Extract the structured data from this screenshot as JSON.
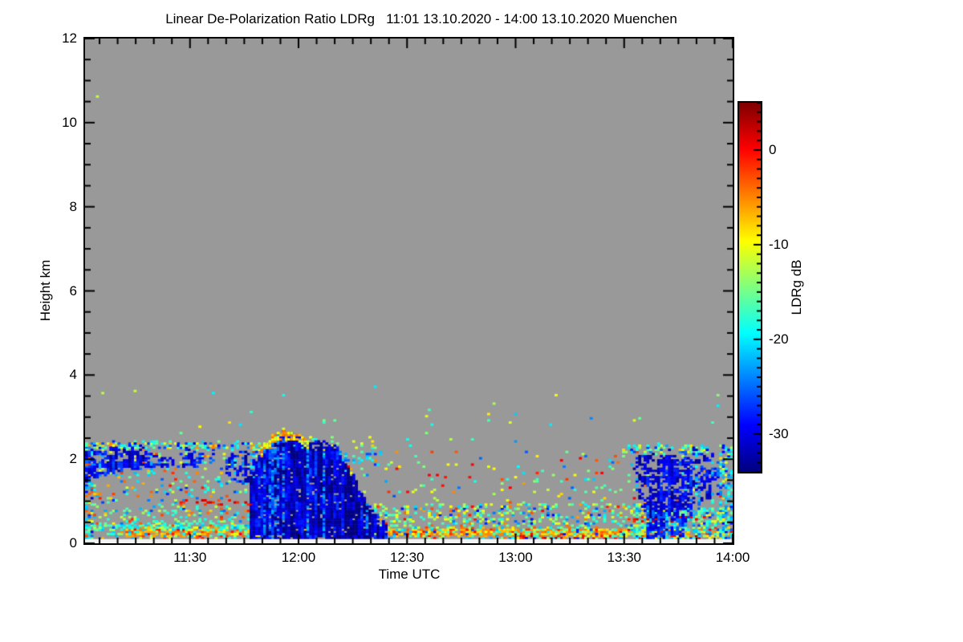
{
  "title": "Linear De-Polarization Ratio LDRg   11:01 13.10.2020 - 14:00 13.10.2020 Muenchen",
  "colors": {
    "page_bg": "#ffffff",
    "plot_bg": "#999999",
    "frame": "#000000",
    "missing_strip": "#f4f4f4"
  },
  "x_axis": {
    "label": "Time UTC",
    "start": "11:01",
    "end": "14:00",
    "ticks": [
      {
        "label": "11:30",
        "minute": 29
      },
      {
        "label": "12:00",
        "minute": 59
      },
      {
        "label": "12:30",
        "minute": 89
      },
      {
        "label": "13:00",
        "minute": 119
      },
      {
        "label": "13:30",
        "minute": 149
      },
      {
        "label": "14:00",
        "minute": 179
      }
    ],
    "minor_step_min": 5,
    "total_minutes": 179
  },
  "y_axis": {
    "label": "Height km",
    "min": 0,
    "max": 12,
    "ticks": [
      {
        "label": "0",
        "km": 0
      },
      {
        "label": "2",
        "km": 2
      },
      {
        "label": "4",
        "km": 4
      },
      {
        "label": "6",
        "km": 6
      },
      {
        "label": "8",
        "km": 8
      },
      {
        "label": "10",
        "km": 10
      },
      {
        "label": "12",
        "km": 12
      }
    ],
    "minor_step_km": 0.5
  },
  "colorbar": {
    "label": "LDRg dB",
    "colormap": "jet",
    "vmin": -34,
    "vmax": 5,
    "ticks": [
      {
        "label": "0",
        "value": 0
      },
      {
        "label": "-10",
        "value": -10
      },
      {
        "label": "-20",
        "value": -20
      },
      {
        "label": "-30",
        "value": -30
      }
    ],
    "minor_step": 1
  },
  "chart_data": {
    "type": "heatmap",
    "title": "Linear De-Polarization Ratio LDRg",
    "site": "Muenchen",
    "time_span": "11:01 13.10.2020 - 14:00 13.10.2020",
    "x_unit": "minutes after 11:01 UTC",
    "y_unit": "km height",
    "value_unit": "LDRg dB",
    "value_range": [
      -34,
      5
    ],
    "background_value": "no-data gray",
    "grid": {
      "cols": 240,
      "rows": 240
    },
    "features": [
      {
        "name": "surface-rain-line",
        "kind": "hline",
        "t": [
          11,
          179
        ],
        "h": 0.24,
        "thickness": 0.14,
        "density": 0.8,
        "modes": [
          [
            -9,
            -4,
            0.72
          ],
          [
            -4,
            1,
            0.2
          ],
          [
            -16,
            -10,
            0.08
          ]
        ]
      },
      {
        "name": "near-surface-red-dots",
        "kind": "hline",
        "t": [
          118,
          172
        ],
        "h": 0.1,
        "thickness": 0.07,
        "density": 0.3,
        "modes": [
          [
            -1,
            4,
            1
          ]
        ]
      },
      {
        "name": "cyan-line-left",
        "kind": "hline",
        "t": [
          0,
          48
        ],
        "h": 0.36,
        "thickness": 0.1,
        "density": 0.55,
        "modes": [
          [
            -22,
            -15,
            0.85
          ],
          [
            -12,
            -8,
            0.15
          ]
        ]
      },
      {
        "name": "left-low-aerosol",
        "kind": "speckle",
        "t": [
          0,
          47
        ],
        "h": [
          0.08,
          0.75
        ],
        "density": 0.22,
        "modes": [
          [
            -20,
            -10,
            0.5
          ],
          [
            -26,
            -16,
            0.3
          ],
          [
            -8,
            0,
            0.2
          ]
        ]
      },
      {
        "name": "left-mid-speckle",
        "kind": "speckle",
        "t": [
          0,
          47
        ],
        "h": [
          0.75,
          2.3
        ],
        "density": 0.1,
        "modes": [
          [
            -20,
            -10,
            0.45
          ],
          [
            -28,
            -18,
            0.35
          ],
          [
            -8,
            0,
            0.2
          ]
        ]
      },
      {
        "name": "red-dotted-line-left",
        "kind": "hline",
        "t": [
          26,
          52
        ],
        "h": 0.95,
        "thickness": 0.08,
        "density": 0.28,
        "modes": [
          [
            -3,
            2,
            1
          ]
        ]
      },
      {
        "name": "left-top-edge-band",
        "kind": "hline",
        "t": [
          0,
          52
        ],
        "h": 2.3,
        "thickness": 0.12,
        "density": 0.5,
        "modes": [
          [
            -22,
            -14,
            0.5
          ],
          [
            -32,
            -24,
            0.25
          ],
          [
            -12,
            -5,
            0.25
          ]
        ]
      },
      {
        "name": "mid-low-speckles",
        "kind": "speckle",
        "t": [
          80,
          156
        ],
        "h": [
          0.08,
          0.9
        ],
        "density": 0.3,
        "modes": [
          [
            -18,
            -9,
            0.5
          ],
          [
            -24,
            -16,
            0.3
          ],
          [
            -7,
            0,
            0.12
          ],
          [
            -30,
            -24,
            0.08
          ]
        ]
      },
      {
        "name": "mid-upper-speckles",
        "kind": "speckle",
        "t": [
          66,
          176
        ],
        "h": [
          0.9,
          2.15
        ],
        "density": 0.045,
        "modes": [
          [
            -18,
            -8,
            0.55
          ],
          [
            -26,
            -16,
            0.25
          ],
          [
            -6,
            1,
            0.2
          ]
        ]
      },
      {
        "name": "above-cloud-flecks",
        "kind": "speckle",
        "t": [
          56,
          80
        ],
        "h": [
          2.2,
          2.55
        ],
        "density": 0.12,
        "modes": [
          [
            -22,
            -14,
            0.6
          ],
          [
            -12,
            -7,
            0.4
          ]
        ]
      },
      {
        "name": "post-cloud-cyan-shelf",
        "kind": "hline",
        "t": [
          66,
          82
        ],
        "h": 2.0,
        "thickness": 0.25,
        "density": 0.25,
        "modes": [
          [
            -24,
            -16,
            0.7
          ],
          [
            -30,
            -24,
            0.3
          ]
        ]
      },
      {
        "name": "high-rare-dots",
        "kind": "speckle",
        "t": [
          0,
          179
        ],
        "h": [
          2.3,
          3.6
        ],
        "density": 0.004,
        "modes": [
          [
            -18,
            -8,
            0.6
          ],
          [
            -24,
            -14,
            0.4
          ]
        ]
      },
      {
        "name": "cyan-band-right",
        "kind": "hline",
        "t": [
          149,
          172
        ],
        "h": 2.22,
        "thickness": 0.14,
        "density": 0.45,
        "modes": [
          [
            -21,
            -13,
            0.7
          ],
          [
            -12,
            -7,
            0.15
          ],
          [
            -28,
            -22,
            0.15
          ]
        ]
      },
      {
        "name": "right-low-dense",
        "kind": "speckle",
        "t": [
          152,
          179
        ],
        "h": [
          0.08,
          0.8
        ],
        "density": 0.5,
        "modes": [
          [
            -22,
            -14,
            0.55
          ],
          [
            -16,
            -8,
            0.3
          ],
          [
            -28,
            -22,
            0.15
          ]
        ]
      },
      {
        "name": "right-red-dotted",
        "kind": "hline",
        "t": [
          150,
          172
        ],
        "h": 0.55,
        "thickness": 0.08,
        "density": 0.3,
        "modes": [
          [
            -2,
            3,
            1
          ]
        ]
      },
      {
        "name": "right-edge-column",
        "kind": "speckle",
        "t": [
          176,
          179
        ],
        "h": [
          0.08,
          2.3
        ],
        "density": 0.45,
        "modes": [
          [
            -24,
            -16,
            0.5
          ],
          [
            -30,
            -22,
            0.3
          ],
          [
            -14,
            -8,
            0.2
          ]
        ]
      },
      {
        "name": "left-edge-column",
        "kind": "speckle",
        "t": [
          0,
          2
        ],
        "h": [
          0.08,
          2.3
        ],
        "density": 0.4,
        "modes": [
          [
            -30,
            -22,
            0.4
          ],
          [
            -22,
            -14,
            0.4
          ],
          [
            -10,
            -2,
            0.2
          ]
        ]
      },
      {
        "name": "left-cloud",
        "kind": "cloud",
        "t": [
          0,
          25
        ],
        "clump": true,
        "density": 0.78,
        "top": [
          [
            0,
            2.15
          ],
          [
            5,
            2.28
          ],
          [
            9,
            2.2
          ],
          [
            13,
            2.3
          ],
          [
            18,
            2.12
          ],
          [
            22,
            2.02
          ],
          [
            25,
            1.95
          ]
        ],
        "bottom": [
          [
            0,
            1.5
          ],
          [
            5,
            1.62
          ],
          [
            10,
            1.75
          ],
          [
            15,
            1.8
          ],
          [
            20,
            1.82
          ],
          [
            25,
            1.88
          ]
        ],
        "v": [
          -33,
          -27
        ],
        "streak": 0.12,
        "streak_v": [
          -25,
          -21
        ]
      },
      {
        "name": "small-cloud-1128",
        "kind": "cloud",
        "t": [
          26,
          35
        ],
        "clump": true,
        "density": 0.55,
        "top": [
          [
            26,
            2.12
          ],
          [
            30,
            2.18
          ],
          [
            35,
            2.1
          ]
        ],
        "bottom": [
          [
            26,
            1.85
          ],
          [
            30,
            1.8
          ],
          [
            35,
            1.9
          ]
        ],
        "v": [
          -32,
          -26
        ],
        "streak": 0.1,
        "streak_v": [
          -24,
          -20
        ]
      },
      {
        "name": "pre-cloud-patch",
        "kind": "cloud",
        "t": [
          39,
          48
        ],
        "clump": true,
        "density": 0.5,
        "top": [
          [
            39,
            2.0
          ],
          [
            43,
            2.15
          ],
          [
            48,
            2.1
          ]
        ],
        "bottom": [
          [
            39,
            1.55
          ],
          [
            44,
            1.45
          ],
          [
            48,
            1.2
          ]
        ],
        "v": [
          -32,
          -25
        ],
        "streak": 0.15,
        "streak_v": [
          -23,
          -19
        ]
      },
      {
        "name": "main-precip-cloud",
        "kind": "cloud",
        "t": [
          46,
          83
        ],
        "clump": false,
        "density": 0.94,
        "top": [
          [
            46,
            1.6
          ],
          [
            48,
            2.1
          ],
          [
            50,
            2.35
          ],
          [
            53,
            2.52
          ],
          [
            55,
            2.64
          ],
          [
            57,
            2.58
          ],
          [
            60,
            2.45
          ],
          [
            63,
            2.38
          ],
          [
            66,
            2.32
          ],
          [
            69,
            2.28
          ],
          [
            71,
            2.05
          ],
          [
            73,
            1.75
          ],
          [
            75,
            1.45
          ],
          [
            77,
            1.05
          ],
          [
            79,
            0.75
          ],
          [
            83,
            0.4
          ]
        ],
        "bottom": [
          [
            46,
            0.08
          ],
          [
            83,
            0.08
          ]
        ],
        "v": [
          -35,
          -28
        ],
        "streak": 0.18,
        "streak_v": [
          -27,
          -22
        ],
        "cap": {
          "t": [
            48,
            62
          ],
          "v": [
            -12,
            -4
          ],
          "thickness": 0.12
        }
      },
      {
        "name": "right-cloud-streaks",
        "kind": "cloud",
        "t": [
          152,
          168
        ],
        "clump": true,
        "density": 0.55,
        "top": [
          [
            152,
            1.9
          ],
          [
            155,
            2.2
          ],
          [
            158,
            2.1
          ],
          [
            161,
            2.25
          ],
          [
            164,
            2.05
          ],
          [
            168,
            1.9
          ]
        ],
        "bottom": [
          [
            152,
            1.3
          ],
          [
            155,
            0.8
          ],
          [
            158,
            0.55
          ],
          [
            161,
            0.7
          ],
          [
            164,
            0.5
          ],
          [
            168,
            0.6
          ]
        ],
        "v": [
          -33,
          -26
        ],
        "streak": 0.2,
        "streak_v": [
          -25,
          -20
        ]
      },
      {
        "name": "right-cloud-2",
        "kind": "cloud",
        "t": [
          166,
          175
        ],
        "clump": true,
        "density": 0.4,
        "top": [
          [
            166,
            2.2
          ],
          [
            170,
            2.25
          ],
          [
            175,
            2.1
          ]
        ],
        "bottom": [
          [
            166,
            1.1
          ],
          [
            170,
            0.9
          ],
          [
            175,
            1.2
          ]
        ],
        "v": [
          -32,
          -25
        ],
        "streak": 0.2,
        "streak_v": [
          -24,
          -19
        ]
      },
      {
        "name": "right-blue-patch",
        "kind": "cloud",
        "t": [
          156,
          166
        ],
        "clump": true,
        "density": 0.55,
        "top": [
          [
            156,
            0.9
          ],
          [
            160,
            1.2
          ],
          [
            163,
            1.05
          ],
          [
            166,
            0.8
          ]
        ],
        "bottom": [
          [
            156,
            0.08
          ],
          [
            166,
            0.08
          ]
        ],
        "v": [
          -32,
          -25
        ],
        "streak": 0.15,
        "streak_v": [
          -24,
          -20
        ]
      },
      {
        "name": "lowest-gate-missing-strip",
        "kind": "band",
        "t": [
          0,
          179
        ],
        "h": [
          0,
          0.07
        ],
        "color": "#f4f4f4"
      }
    ],
    "dots": [
      [
        3,
        10.62,
        -12
      ],
      [
        55,
        3.52,
        -19
      ],
      [
        66,
        2.9,
        -15
      ],
      [
        80,
        3.72,
        -20
      ],
      [
        94,
        3.02,
        -11
      ],
      [
        113,
        3.3,
        -13
      ],
      [
        130,
        3.5,
        -10
      ],
      [
        140,
        2.95,
        -24
      ]
    ]
  }
}
